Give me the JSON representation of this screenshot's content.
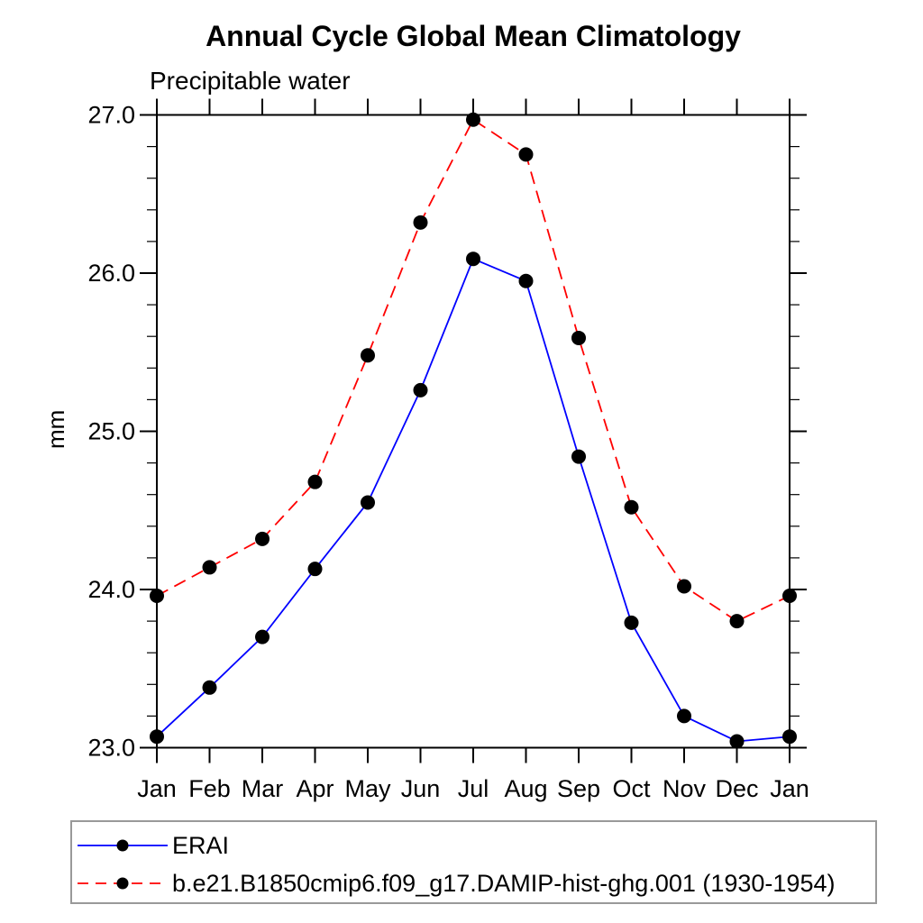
{
  "chart_data": {
    "type": "line",
    "title": "Annual Cycle Global Mean Climatology",
    "subtitle": "Precipitable water",
    "ylabel": "mm",
    "categories": [
      "Jan",
      "Feb",
      "Mar",
      "Apr",
      "May",
      "Jun",
      "Jul",
      "Aug",
      "Sep",
      "Oct",
      "Nov",
      "Dec",
      "Jan"
    ],
    "ylim": [
      23.0,
      27.0
    ],
    "y_major_tick_step": 1.0,
    "y_minor_tick_step": 0.2,
    "y_tick_labels": [
      "23.0",
      "24.0",
      "25.0",
      "26.0",
      "27.0"
    ],
    "grid": false,
    "legend_position": "bottom-left-box",
    "axis_color": "#000000",
    "series": [
      {
        "name": "ERAI",
        "line_color": "#0000ff",
        "line_style": "solid",
        "marker": "filled-circle",
        "marker_color": "#000000",
        "values": [
          23.07,
          23.38,
          23.7,
          24.13,
          24.55,
          25.26,
          26.09,
          25.95,
          24.84,
          23.79,
          23.2,
          23.04,
          23.07
        ]
      },
      {
        "name": "b.e21.B1850cmip6.f09_g17.DAMIP-hist-ghg.001 (1930-1954)",
        "line_color": "#ff0000",
        "line_style": "dashed",
        "marker": "filled-circle",
        "marker_color": "#000000",
        "values": [
          23.96,
          24.14,
          24.32,
          24.68,
          25.48,
          26.32,
          26.97,
          26.75,
          25.59,
          24.52,
          24.02,
          23.8,
          23.96
        ]
      }
    ]
  }
}
